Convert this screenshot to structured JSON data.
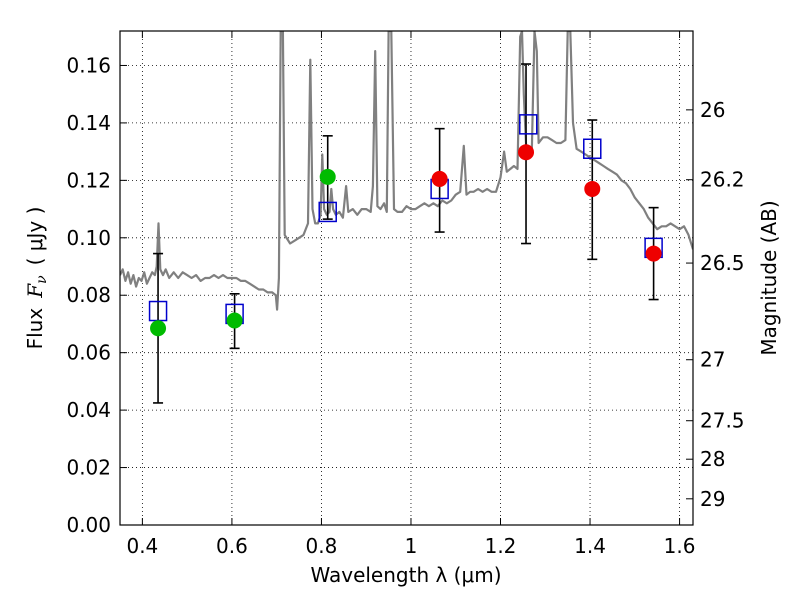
{
  "chart_data": {
    "type": "scatter",
    "xlabel": "Wavelength  λ (μm)",
    "ylabel_left": "Flux  F_ν  ( μJy )",
    "ylabel_left_parts": {
      "flux": "Flux",
      "symbol": "F",
      "subscript": "ν",
      "unit": "( μJy )"
    },
    "ylabel_right": "Magnitude (AB)",
    "xlim": [
      0.35,
      1.63
    ],
    "ylim": [
      0.0,
      0.172
    ],
    "grid": true,
    "x_ticks": [
      0.4,
      0.6,
      0.8,
      1.0,
      1.2,
      1.4,
      1.6
    ],
    "x_tick_labels": [
      "0.4",
      "0.6",
      "0.8",
      "1",
      "1.2",
      "1.4",
      "1.6"
    ],
    "y_ticks": [
      0.0,
      0.02,
      0.04,
      0.06,
      0.08,
      0.1,
      0.12,
      0.14,
      0.16
    ],
    "y_tick_labels": [
      "0.00",
      "0.02",
      "0.04",
      "0.06",
      "0.08",
      "0.10",
      "0.12",
      "0.14",
      "0.16"
    ],
    "magnitude_ticks": [
      "26",
      "26.2",
      "26.5",
      "27",
      "27.5",
      "28",
      "29"
    ],
    "colors": {
      "spectrum": "#808080",
      "model": "#0000cc",
      "green_points": "#00bb00",
      "red_points": "#ee0000",
      "errorbars": "#000000"
    },
    "series": [
      {
        "marker": "circle",
        "color": "#00bb00",
        "points": [
          {
            "x": 0.435,
            "y": 0.0685,
            "yerr_low": 0.0425,
            "yerr_high": 0.0945
          },
          {
            "x": 0.606,
            "y": 0.0712,
            "yerr_low": 0.0615,
            "yerr_high": 0.0805
          },
          {
            "x": 0.814,
            "y": 0.1212,
            "yerr_low": 0.1065,
            "yerr_high": 0.1355
          }
        ]
      },
      {
        "marker": "circle",
        "color": "#ee0000",
        "points": [
          {
            "x": 1.064,
            "y": 0.1205,
            "yerr_low": 0.102,
            "yerr_high": 0.138
          },
          {
            "x": 1.257,
            "y": 0.1298,
            "yerr_low": 0.098,
            "yerr_high": 0.1605
          },
          {
            "x": 1.405,
            "y": 0.117,
            "yerr_low": 0.0925,
            "yerr_high": 0.141
          },
          {
            "x": 1.542,
            "y": 0.0945,
            "yerr_low": 0.0785,
            "yerr_high": 0.1105
          }
        ]
      },
      {
        "marker": "open-square",
        "color": "#0000cc",
        "points": [
          {
            "x": 0.435,
            "y": 0.0745
          },
          {
            "x": 0.606,
            "y": 0.0735
          },
          {
            "x": 0.814,
            "y": 0.109
          },
          {
            "x": 1.064,
            "y": 0.117
          },
          {
            "x": 1.262,
            "y": 0.1395
          },
          {
            "x": 1.405,
            "y": 0.131
          },
          {
            "x": 1.542,
            "y": 0.0965
          }
        ]
      },
      {
        "marker": "line",
        "color": "#808080",
        "points": [
          [
            0.35,
            0.087
          ],
          [
            0.356,
            0.089
          ],
          [
            0.362,
            0.085
          ],
          [
            0.368,
            0.088
          ],
          [
            0.374,
            0.084
          ],
          [
            0.38,
            0.087
          ],
          [
            0.386,
            0.083
          ],
          [
            0.392,
            0.086
          ],
          [
            0.398,
            0.085
          ],
          [
            0.404,
            0.088
          ],
          [
            0.41,
            0.084
          ],
          [
            0.416,
            0.086
          ],
          [
            0.422,
            0.088
          ],
          [
            0.428,
            0.087
          ],
          [
            0.432,
            0.09
          ],
          [
            0.436,
            0.105
          ],
          [
            0.44,
            0.089
          ],
          [
            0.446,
            0.087
          ],
          [
            0.452,
            0.089
          ],
          [
            0.46,
            0.086
          ],
          [
            0.47,
            0.088
          ],
          [
            0.48,
            0.086
          ],
          [
            0.49,
            0.088
          ],
          [
            0.5,
            0.087
          ],
          [
            0.51,
            0.086
          ],
          [
            0.52,
            0.087
          ],
          [
            0.53,
            0.085
          ],
          [
            0.54,
            0.086
          ],
          [
            0.55,
            0.086
          ],
          [
            0.56,
            0.087
          ],
          [
            0.57,
            0.086
          ],
          [
            0.58,
            0.087
          ],
          [
            0.59,
            0.086
          ],
          [
            0.6,
            0.086
          ],
          [
            0.61,
            0.086
          ],
          [
            0.62,
            0.085
          ],
          [
            0.63,
            0.085
          ],
          [
            0.64,
            0.084
          ],
          [
            0.65,
            0.083
          ],
          [
            0.66,
            0.082
          ],
          [
            0.67,
            0.082
          ],
          [
            0.68,
            0.081
          ],
          [
            0.69,
            0.081
          ],
          [
            0.698,
            0.08
          ],
          [
            0.701,
            0.075
          ],
          [
            0.705,
            0.086
          ],
          [
            0.709,
            0.172
          ],
          [
            0.714,
            0.172
          ],
          [
            0.718,
            0.101
          ],
          [
            0.722,
            0.1
          ],
          [
            0.73,
            0.098
          ],
          [
            0.74,
            0.099
          ],
          [
            0.75,
            0.1
          ],
          [
            0.76,
            0.101
          ],
          [
            0.77,
            0.105
          ],
          [
            0.775,
            0.162
          ],
          [
            0.78,
            0.11
          ],
          [
            0.786,
            0.105
          ],
          [
            0.792,
            0.105
          ],
          [
            0.798,
            0.108
          ],
          [
            0.802,
            0.129
          ],
          [
            0.806,
            0.11
          ],
          [
            0.812,
            0.108
          ],
          [
            0.818,
            0.109
          ],
          [
            0.822,
            0.117
          ],
          [
            0.826,
            0.11
          ],
          [
            0.832,
            0.108
          ],
          [
            0.84,
            0.109
          ],
          [
            0.848,
            0.107
          ],
          [
            0.855,
            0.118
          ],
          [
            0.86,
            0.109
          ],
          [
            0.87,
            0.11
          ],
          [
            0.88,
            0.108
          ],
          [
            0.89,
            0.11
          ],
          [
            0.9,
            0.11
          ],
          [
            0.91,
            0.109
          ],
          [
            0.915,
            0.118
          ],
          [
            0.92,
            0.165
          ],
          [
            0.925,
            0.111
          ],
          [
            0.932,
            0.11
          ],
          [
            0.94,
            0.112
          ],
          [
            0.946,
            0.109
          ],
          [
            0.95,
            0.172
          ],
          [
            0.956,
            0.172
          ],
          [
            0.962,
            0.11
          ],
          [
            0.97,
            0.109
          ],
          [
            0.98,
            0.109
          ],
          [
            0.99,
            0.111
          ],
          [
            1.0,
            0.11
          ],
          [
            1.01,
            0.11
          ],
          [
            1.02,
            0.111
          ],
          [
            1.03,
            0.112
          ],
          [
            1.04,
            0.111
          ],
          [
            1.05,
            0.112
          ],
          [
            1.06,
            0.111
          ],
          [
            1.07,
            0.113
          ],
          [
            1.08,
            0.112
          ],
          [
            1.09,
            0.113
          ],
          [
            1.1,
            0.115
          ],
          [
            1.11,
            0.116
          ],
          [
            1.118,
            0.132
          ],
          [
            1.124,
            0.115
          ],
          [
            1.132,
            0.116
          ],
          [
            1.14,
            0.116
          ],
          [
            1.15,
            0.117
          ],
          [
            1.16,
            0.116
          ],
          [
            1.17,
            0.117
          ],
          [
            1.18,
            0.116
          ],
          [
            1.19,
            0.116
          ],
          [
            1.2,
            0.121
          ],
          [
            1.208,
            0.13
          ],
          [
            1.214,
            0.123
          ],
          [
            1.222,
            0.124
          ],
          [
            1.23,
            0.125
          ],
          [
            1.238,
            0.124
          ],
          [
            1.244,
            0.17
          ],
          [
            1.248,
            0.172
          ],
          [
            1.252,
            0.15
          ],
          [
            1.258,
            0.129
          ],
          [
            1.264,
            0.131
          ],
          [
            1.27,
            0.13
          ],
          [
            1.276,
            0.172
          ],
          [
            1.281,
            0.165
          ],
          [
            1.285,
            0.133
          ],
          [
            1.295,
            0.135
          ],
          [
            1.305,
            0.135
          ],
          [
            1.315,
            0.134
          ],
          [
            1.325,
            0.133
          ],
          [
            1.335,
            0.133
          ],
          [
            1.345,
            0.134
          ],
          [
            1.35,
            0.172
          ],
          [
            1.356,
            0.172
          ],
          [
            1.362,
            0.14
          ],
          [
            1.37,
            0.131
          ],
          [
            1.38,
            0.13
          ],
          [
            1.39,
            0.129
          ],
          [
            1.4,
            0.128
          ],
          [
            1.41,
            0.127
          ],
          [
            1.42,
            0.126
          ],
          [
            1.43,
            0.125
          ],
          [
            1.44,
            0.124
          ],
          [
            1.45,
            0.123
          ],
          [
            1.46,
            0.122
          ],
          [
            1.47,
            0.12
          ],
          [
            1.48,
            0.119
          ],
          [
            1.49,
            0.117
          ],
          [
            1.5,
            0.114
          ],
          [
            1.51,
            0.112
          ],
          [
            1.52,
            0.11
          ],
          [
            1.53,
            0.107
          ],
          [
            1.54,
            0.105
          ],
          [
            1.55,
            0.103
          ],
          [
            1.56,
            0.104
          ],
          [
            1.57,
            0.104
          ],
          [
            1.58,
            0.105
          ],
          [
            1.59,
            0.104
          ],
          [
            1.6,
            0.103
          ],
          [
            1.61,
            0.104
          ],
          [
            1.62,
            0.101
          ],
          [
            1.63,
            0.096
          ]
        ]
      }
    ]
  }
}
